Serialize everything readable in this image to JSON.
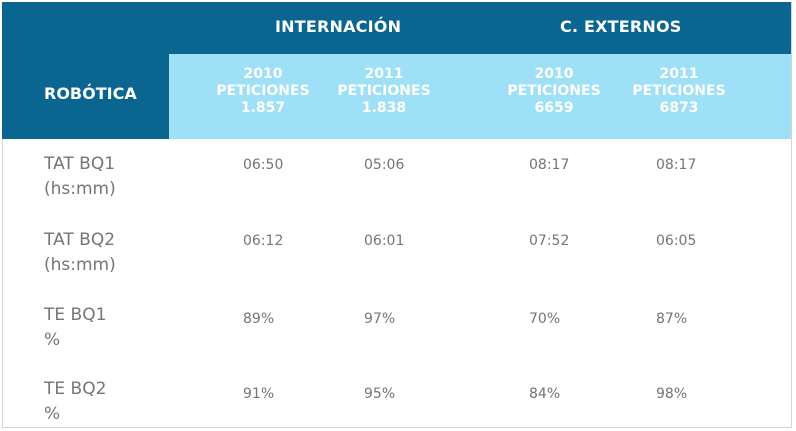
{
  "table": {
    "row_header": "ROBÓTICA",
    "groups": [
      {
        "title": "INTERNACIÓN"
      },
      {
        "title": "C. EXTERNOS"
      }
    ],
    "columns": [
      {
        "year": "2010",
        "label": "PETICIONES",
        "count": "1.857"
      },
      {
        "year": "2011",
        "label": "PETICIONES",
        "count": "1.838"
      },
      {
        "year": "2010",
        "label": "PETICIONES",
        "count": "6659"
      },
      {
        "year": "2011",
        "label": "PETICIONES",
        "count": "6873"
      }
    ],
    "rows": [
      {
        "name": "TAT BQ1",
        "unit": "(hs:mm)",
        "values": [
          "06:50",
          "05:06",
          "08:17",
          "08:17"
        ]
      },
      {
        "name": "TAT BQ2",
        "unit": "(hs:mm)",
        "values": [
          "06:12",
          "06:01",
          "07:52",
          "06:05"
        ]
      },
      {
        "name": "TE BQ1",
        "unit": "%",
        "values": [
          "89%",
          "97%",
          "70%",
          "87%"
        ]
      },
      {
        "name": "TE BQ2",
        "unit": "%",
        "values": [
          "91%",
          "95%",
          "84%",
          "98%"
        ]
      }
    ]
  },
  "colors": {
    "header_dark": "#0a6690",
    "header_light": "#9ee0f6",
    "text_gray": "#757575"
  }
}
